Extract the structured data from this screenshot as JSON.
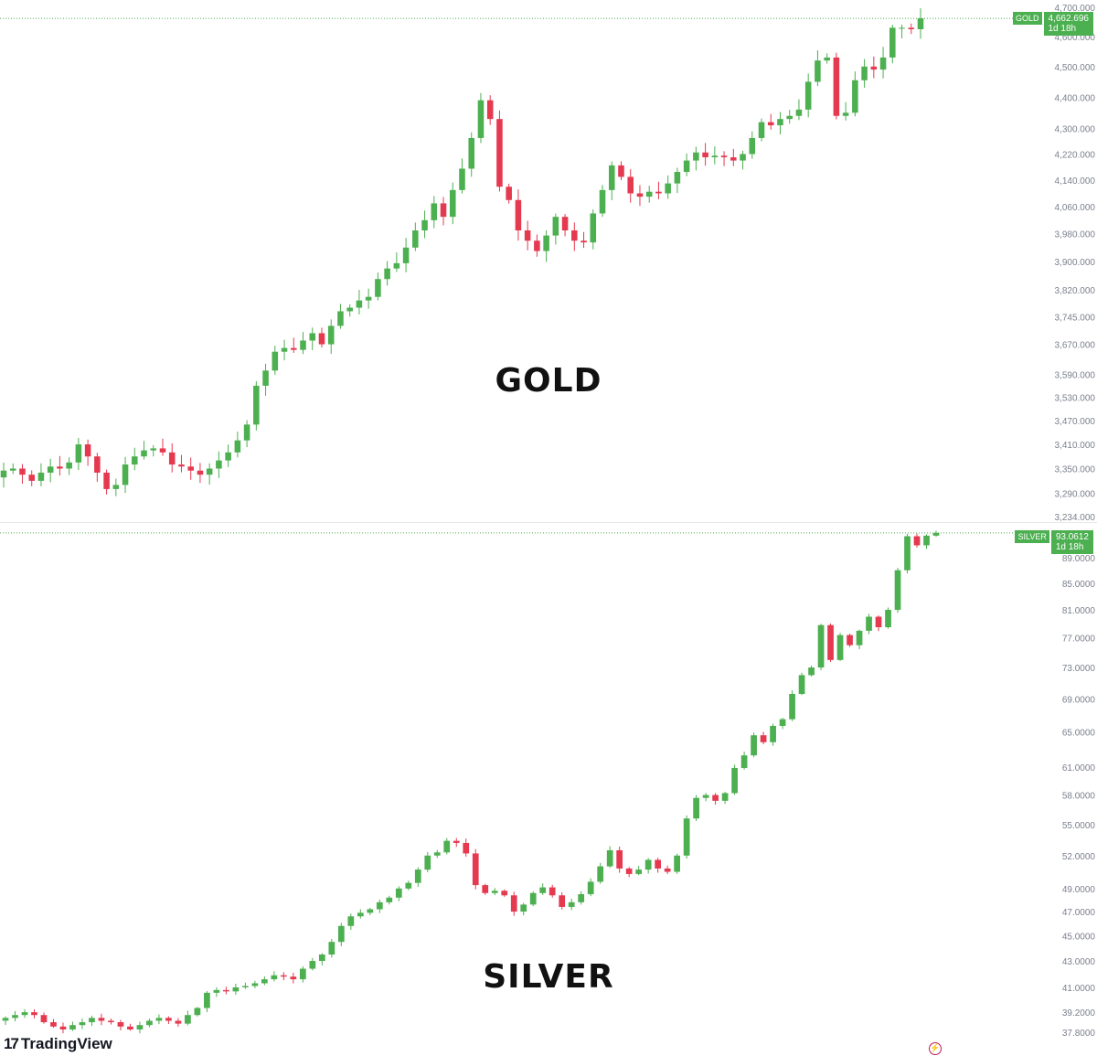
{
  "chart_data": [
    {
      "type": "candlestick",
      "title": "GOLD",
      "symbol": "GOLD",
      "last_price": "4,662.696",
      "countdown": "1d 18h",
      "color_up": "#4caf50",
      "color_down": "#e53950",
      "y_ticks": [
        "4,700.000",
        "4,600.000",
        "4,500.000",
        "4,400.000",
        "4,300.000",
        "4,220.000",
        "4,140.000",
        "4,060.000",
        "3,980.000",
        "3,900.000",
        "3,820.000",
        "3,745.000",
        "3,670.000",
        "3,590.000",
        "3,530.000",
        "3,470.000",
        "3,410.000",
        "3,350.000",
        "3,290.000",
        "3,234.000"
      ],
      "y_tick_values": [
        4700,
        4600,
        4500,
        4400,
        4300,
        4220,
        4140,
        4060,
        3980,
        3900,
        3820,
        3745,
        3670,
        3590,
        3530,
        3470,
        3410,
        3350,
        3290,
        3234
      ],
      "ylim": [
        3234,
        4700
      ],
      "scale": "log",
      "close_path": [
        3345,
        3350,
        3335,
        3320,
        3340,
        3355,
        3350,
        3365,
        3410,
        3380,
        3340,
        3300,
        3310,
        3360,
        3380,
        3395,
        3400,
        3390,
        3360,
        3355,
        3345,
        3335,
        3350,
        3370,
        3390,
        3420,
        3460,
        3560,
        3600,
        3650,
        3660,
        3655,
        3680,
        3700,
        3670,
        3720,
        3760,
        3770,
        3790,
        3800,
        3850,
        3880,
        3895,
        3940,
        3990,
        4020,
        4070,
        4030,
        4110,
        4175,
        4270,
        4390,
        4330,
        4120,
        4080,
        3990,
        3960,
        3930,
        3975,
        4030,
        3990,
        3960,
        3955,
        4040,
        4110,
        4185,
        4150,
        4100,
        4090,
        4105,
        4100,
        4130,
        4165,
        4200,
        4225,
        4210,
        4215,
        4210,
        4200,
        4220,
        4270,
        4320,
        4310,
        4330,
        4340,
        4360,
        4450,
        4520,
        4530,
        4340,
        4350,
        4455,
        4500,
        4490,
        4530,
        4630,
        4630,
        4625,
        4662
      ]
    },
    {
      "type": "candlestick",
      "title": "SILVER",
      "symbol": "SILVER",
      "last_price": "93.0612",
      "countdown": "1d 18h",
      "color_up": "#4caf50",
      "color_down": "#e53950",
      "y_ticks": [
        "89.0000",
        "85.0000",
        "81.0000",
        "77.0000",
        "73.0000",
        "69.0000",
        "65.0000",
        "61.0000",
        "58.0000",
        "55.0000",
        "52.0000",
        "49.0000",
        "47.0000",
        "45.0000",
        "43.0000",
        "41.0000",
        "39.2000",
        "37.8000"
      ],
      "y_tick_values": [
        89,
        85,
        81,
        77,
        73,
        69,
        65,
        61,
        58,
        55,
        52,
        49,
        47,
        45,
        43,
        41,
        39.2,
        37.8
      ],
      "ylim": [
        37.5,
        93.5
      ],
      "scale": "log",
      "close_path": [
        38.8,
        39.0,
        39.2,
        39.0,
        38.5,
        38.2,
        38.0,
        38.3,
        38.5,
        38.8,
        38.6,
        38.5,
        38.2,
        38.0,
        38.3,
        38.6,
        38.8,
        38.6,
        38.4,
        39.0,
        39.5,
        40.6,
        40.8,
        40.7,
        41.0,
        41.1,
        41.3,
        41.6,
        41.9,
        41.8,
        41.6,
        42.4,
        43.0,
        43.5,
        44.5,
        45.8,
        46.6,
        46.9,
        47.2,
        47.8,
        48.2,
        49.0,
        49.5,
        50.7,
        52.0,
        52.3,
        53.4,
        53.2,
        52.2,
        49.3,
        48.6,
        48.8,
        48.4,
        47.0,
        47.6,
        48.6,
        49.1,
        48.4,
        47.4,
        47.8,
        48.5,
        49.6,
        51.0,
        52.5,
        50.8,
        50.3,
        50.7,
        51.6,
        50.8,
        50.5,
        52.0,
        55.6,
        57.7,
        58.0,
        57.4,
        58.2,
        60.9,
        62.3,
        64.6,
        63.8,
        65.7,
        66.5,
        69.6,
        72.0,
        73.0,
        78.8,
        74.0,
        77.4,
        76.0,
        78.0,
        80.0,
        78.5,
        81.0,
        87.0,
        92.5,
        91.0,
        92.6,
        93.06
      ]
    }
  ],
  "watermark": {
    "brand": "TradingView"
  }
}
